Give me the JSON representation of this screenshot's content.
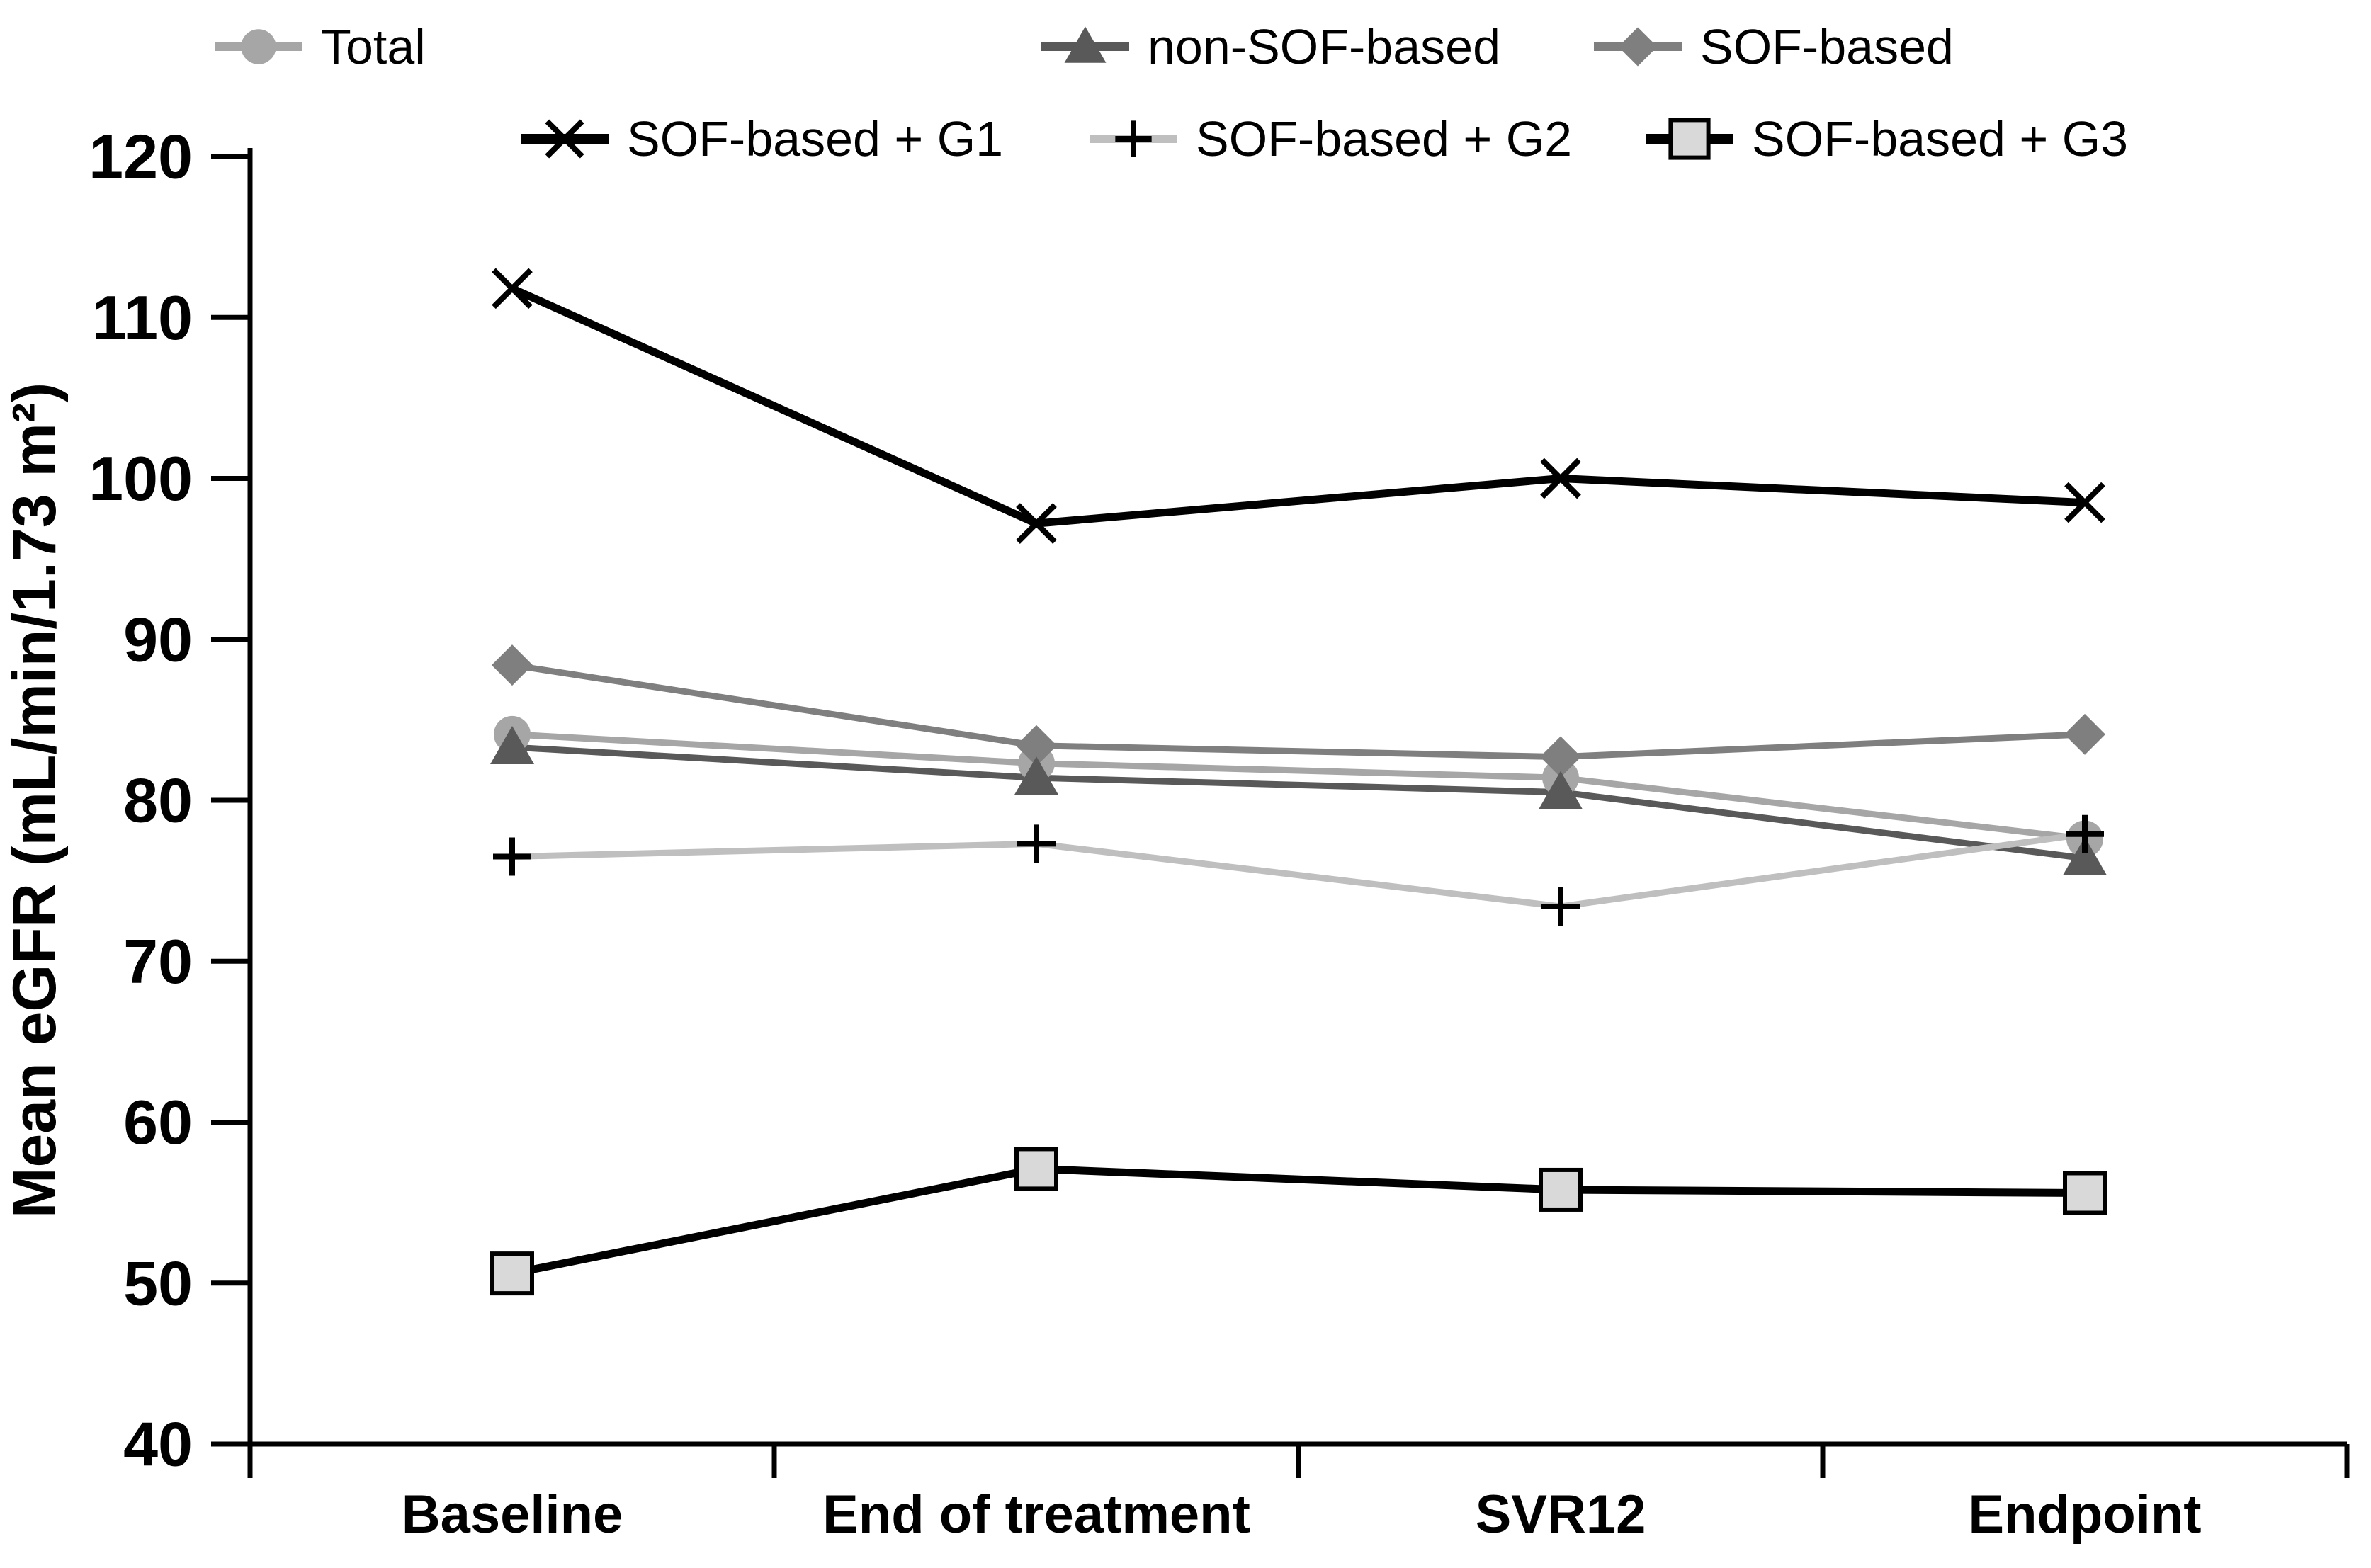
{
  "figure": {
    "background": "#ffffff",
    "axis_color": "#000000"
  },
  "chart_data": {
    "type": "line",
    "title": "",
    "xlabel": "",
    "ylabel": "Mean eGFR (mL/min/1.73 m²)",
    "ylim": [
      40,
      120
    ],
    "yticks": [
      40,
      50,
      60,
      70,
      80,
      90,
      100,
      110,
      120
    ],
    "grid": false,
    "legend_position": "top",
    "categories": [
      "Baseline",
      "End of treatment",
      "SVR12",
      "Endpoint"
    ],
    "series": [
      {
        "name": "Total",
        "marker": "circle",
        "line_color": "#a6a6a6",
        "marker_color": "#a6a6a6",
        "marker_stroke": "#a6a6a6",
        "values": [
          84.1,
          82.3,
          81.4,
          77.6
        ]
      },
      {
        "name": "non-SOF-based",
        "marker": "triangle",
        "line_color": "#595959",
        "marker_color": "#595959",
        "marker_stroke": "#595959",
        "values": [
          83.3,
          81.4,
          80.5,
          76.4
        ]
      },
      {
        "name": "SOF-based",
        "marker": "diamond",
        "line_color": "#7f7f7f",
        "marker_color": "#7f7f7f",
        "marker_stroke": "#7f7f7f",
        "values": [
          88.4,
          83.4,
          82.7,
          84.1
        ]
      },
      {
        "name": "SOF-based + G1",
        "marker": "x",
        "line_color": "#000000",
        "marker_color": "#000000",
        "marker_stroke": "#000000",
        "values": [
          111.8,
          97.2,
          100.0,
          98.5
        ]
      },
      {
        "name": "SOF-based + G2",
        "marker": "plus",
        "line_color": "#bfbfbf",
        "marker_color": "#000000",
        "marker_stroke": "#000000",
        "values": [
          76.5,
          77.3,
          73.4,
          77.9
        ]
      },
      {
        "name": "SOF-based + G3",
        "marker": "square",
        "line_color": "#000000",
        "marker_color": "#d9d9d9",
        "marker_stroke": "#000000",
        "values": [
          50.6,
          57.1,
          55.8,
          55.6
        ]
      }
    ]
  }
}
